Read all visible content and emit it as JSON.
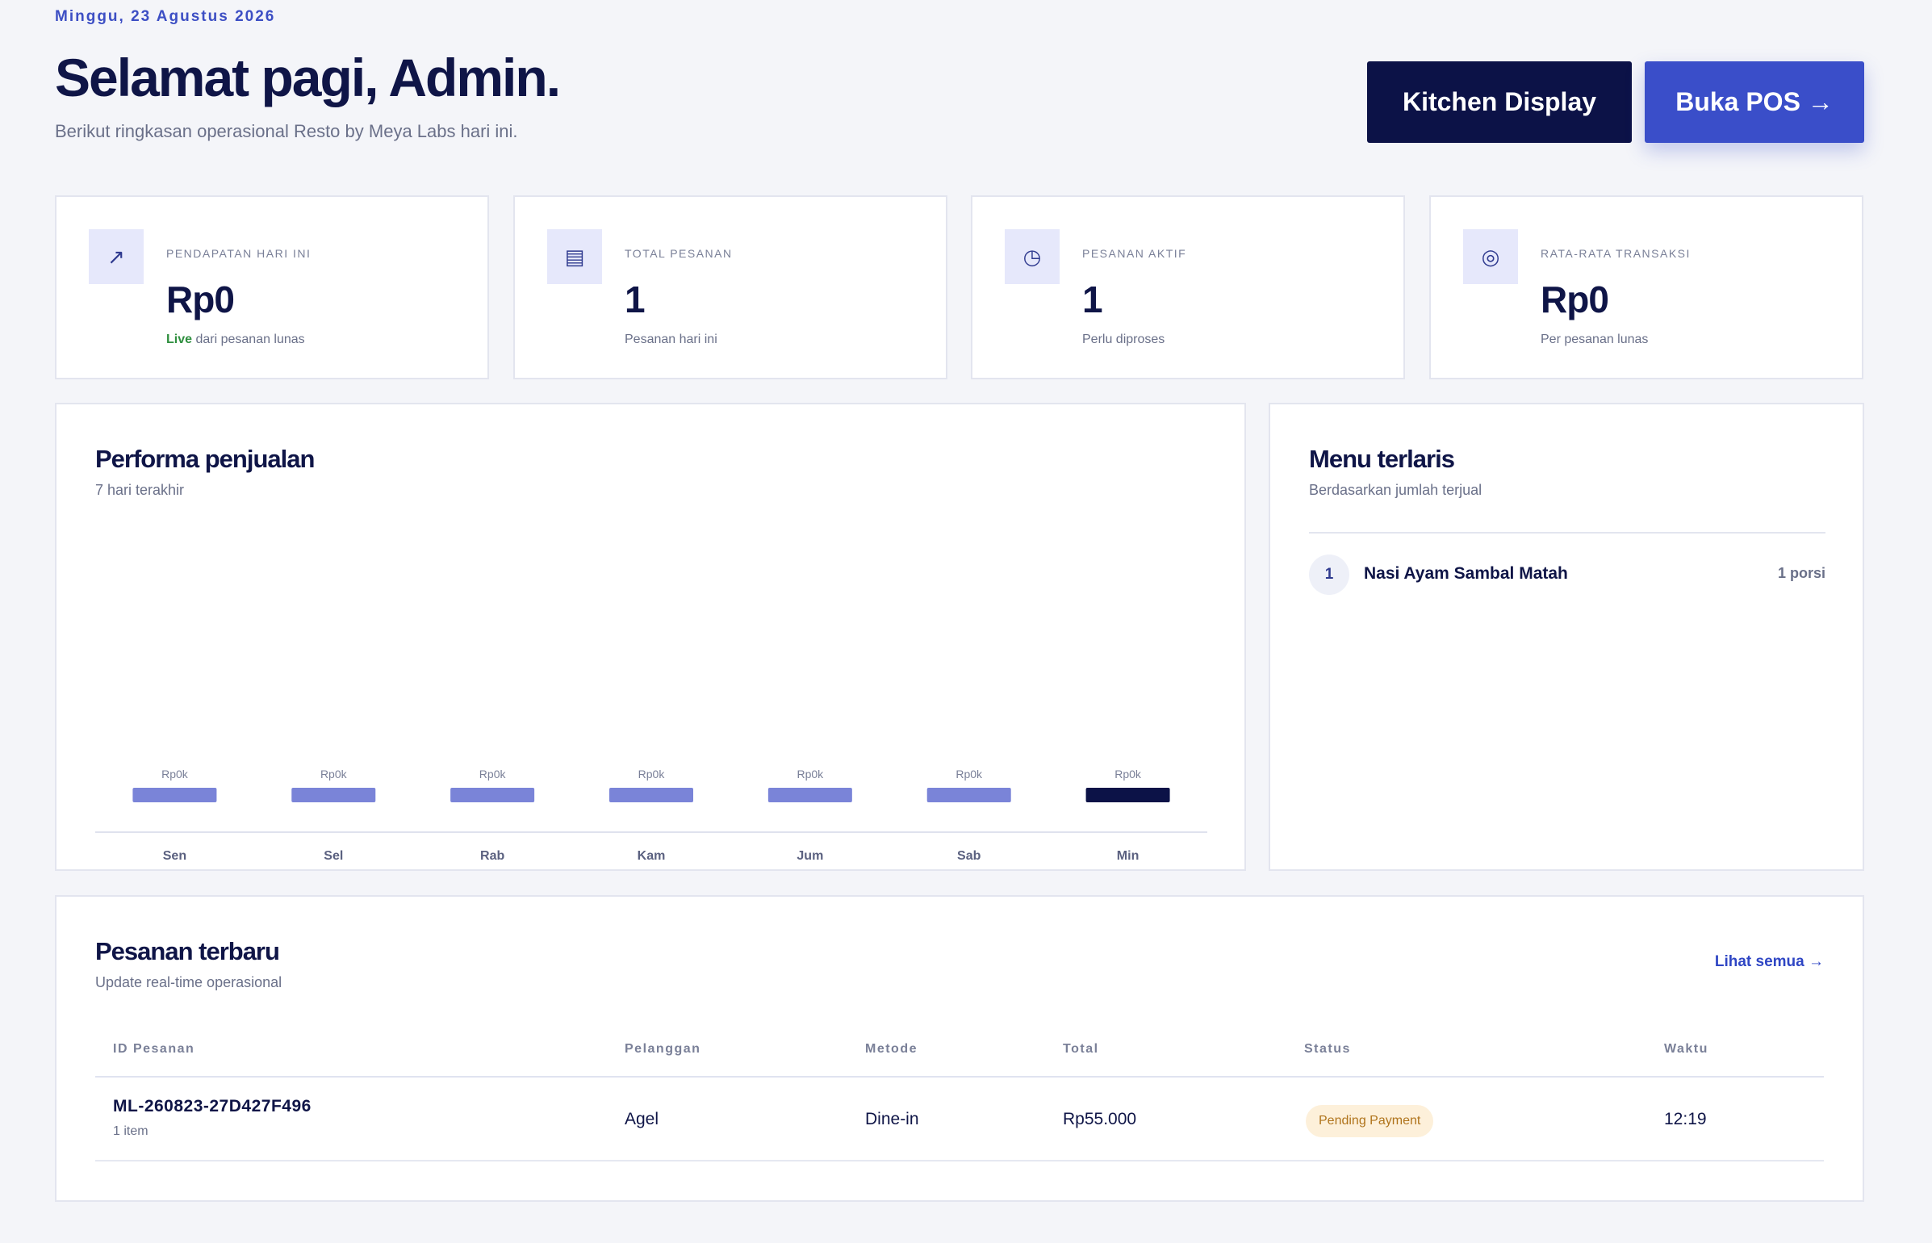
{
  "header": {
    "date": "Minggu, 23 Agustus 2026",
    "title": "Selamat pagi, Admin.",
    "subtitle": "Berikut ringkasan operasional Resto by Meya Labs hari ini.",
    "kitchen_button": "Kitchen Display",
    "pos_button": "Buka POS →"
  },
  "stats": [
    {
      "icon": "trend-arrow-icon",
      "glyph": "↗",
      "label": "PENDAPATAN HARI INI",
      "value": "Rp0",
      "note_live": "Live",
      "note": "dari pesanan lunas"
    },
    {
      "icon": "list-icon",
      "glyph": "▤",
      "label": "TOTAL PESANAN",
      "value": "1",
      "note": "Pesanan hari ini"
    },
    {
      "icon": "clock-icon",
      "glyph": "◷",
      "label": "PESANAN AKTIF",
      "value": "1",
      "note": "Perlu diproses"
    },
    {
      "icon": "target-icon",
      "glyph": "◎",
      "label": "RATA-RATA TRANSAKSI",
      "value": "Rp0",
      "note": "Per pesanan lunas"
    }
  ],
  "sales": {
    "title": "Performa penjualan",
    "subtitle": "7 hari terakhir"
  },
  "chart_data": {
    "type": "bar",
    "categories": [
      "Sen",
      "Sel",
      "Rab",
      "Kam",
      "Jum",
      "Sab",
      "Min"
    ],
    "values": [
      0,
      0,
      0,
      0,
      0,
      0,
      0
    ],
    "data_labels": [
      "Rp0k",
      "Rp0k",
      "Rp0k",
      "Rp0k",
      "Rp0k",
      "Rp0k",
      "Rp0k"
    ],
    "highlight_index": 6,
    "colors": {
      "bar": "#7a84d8",
      "highlight": "#0c1247"
    },
    "grid": false
  },
  "top_menu": {
    "title": "Menu terlaris",
    "subtitle": "Berdasarkan jumlah terjual",
    "items": [
      {
        "rank": "1",
        "name": "Nasi Ayam Sambal Matah",
        "qty": "1 porsi"
      }
    ]
  },
  "orders": {
    "title": "Pesanan terbaru",
    "subtitle": "Update real-time operasional",
    "view_all": "Lihat semua →",
    "columns": [
      "ID Pesanan",
      "Pelanggan",
      "Metode",
      "Total",
      "Status",
      "Waktu"
    ],
    "rows": [
      {
        "id": "ML-260823-27D427F496",
        "items": "1 item",
        "customer": "Agel",
        "method": "Dine-in",
        "total": "Rp55.000",
        "status": "Pending Payment",
        "time": "12:19"
      }
    ]
  },
  "colors": {
    "primary": "#3a4ec9",
    "navy": "#0c1247",
    "background": "#f4f5f9",
    "status_pending_bg": "#fdf0da",
    "status_pending_text": "#b0741c"
  }
}
